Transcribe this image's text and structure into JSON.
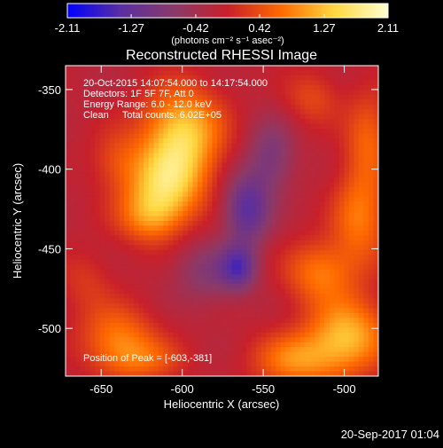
{
  "chart_data": {
    "type": "heatmap",
    "title": "Reconstructed RHESSI Image",
    "xlabel": "Heliocentric X (arcsec)",
    "ylabel": "Heliocentric Y (arcsec)",
    "xlim": [
      -672,
      -479
    ],
    "ylim": [
      -530,
      -335
    ],
    "x_ticks": [
      "-650",
      "-600",
      "-550",
      "-500"
    ],
    "x_tick_values": [
      -650,
      -600,
      -550,
      -500
    ],
    "y_ticks": [
      "-350",
      "-400",
      "-450",
      "-500"
    ],
    "y_tick_values": [
      -350,
      -400,
      -450,
      -500
    ],
    "colorbar": {
      "ticks": [
        "-2.11",
        "-1.27",
        "-0.42",
        "0.42",
        "1.27",
        "2.11"
      ],
      "tick_values": [
        -2.11,
        -1.27,
        -0.42,
        0.42,
        1.27,
        2.11
      ],
      "range": [
        -2.11,
        2.11
      ],
      "units": "(photons cm⁻² s⁻¹ asec⁻²)",
      "colors": [
        "#0000ff",
        "#5a2fa0",
        "#8a3a6a",
        "#c8202a",
        "#ff6a00",
        "#ffd840",
        "#ffffd0"
      ]
    },
    "annotations": [
      "20-Oct-2015 14:07:54.000 to 14:17:54.000",
      "Detectors: 1F 5F 7F, Att 0",
      "Energy Range: 6.0 - 12.0 keV",
      "Clean     Total counts: 6.02E+05"
    ],
    "peak_label": "Position of Peak = [-603,-381]",
    "sources": [
      {
        "x": -600,
        "y": -378,
        "amp": 1.55,
        "sx": 17,
        "sy": 20
      },
      {
        "x": -610,
        "y": -410,
        "amp": 1.3,
        "sx": 16,
        "sy": 16
      },
      {
        "x": -620,
        "y": -430,
        "amp": 0.9,
        "sx": 14,
        "sy": 12
      },
      {
        "x": -640,
        "y": -395,
        "amp": 0.5,
        "sx": 12,
        "sy": 14
      },
      {
        "x": -498,
        "y": -505,
        "amp": 1.35,
        "sx": 17,
        "sy": 16
      },
      {
        "x": -530,
        "y": -520,
        "amp": 1.0,
        "sx": 18,
        "sy": 12
      },
      {
        "x": -515,
        "y": -465,
        "amp": 0.9,
        "sx": 15,
        "sy": 14
      },
      {
        "x": -490,
        "y": -430,
        "amp": 0.9,
        "sx": 12,
        "sy": 22
      },
      {
        "x": -485,
        "y": -380,
        "amp": 0.7,
        "sx": 10,
        "sy": 20
      },
      {
        "x": -520,
        "y": -355,
        "amp": 0.5,
        "sx": 12,
        "sy": 12
      },
      {
        "x": -640,
        "y": -505,
        "amp": 0.85,
        "sx": 16,
        "sy": 14
      },
      {
        "x": -625,
        "y": -520,
        "amp": 0.65,
        "sx": 18,
        "sy": 10
      },
      {
        "x": -660,
        "y": -470,
        "amp": 0.35,
        "sx": 12,
        "sy": 14
      },
      {
        "x": -560,
        "y": -425,
        "amp": -1.2,
        "sx": 10,
        "sy": 16
      },
      {
        "x": -565,
        "y": -462,
        "amp": -1.1,
        "sx": 8,
        "sy": 10
      },
      {
        "x": -545,
        "y": -392,
        "amp": -0.75,
        "sx": 10,
        "sy": 16
      },
      {
        "x": -585,
        "y": -465,
        "amp": -0.6,
        "sx": 14,
        "sy": 14
      }
    ],
    "background_level": -0.15,
    "grid": false
  },
  "footer_date": "20-Sep-2017 01:04"
}
